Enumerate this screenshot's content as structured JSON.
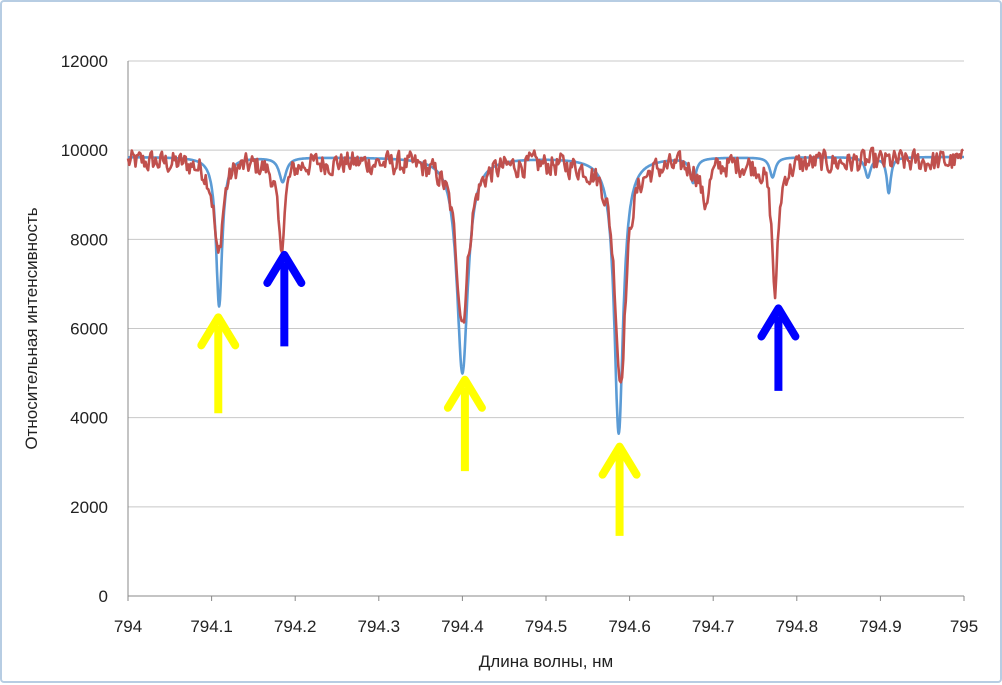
{
  "chart_data": {
    "type": "line",
    "title": "",
    "xlabel": "Длина волны, нм",
    "ylabel": "Относительная интенсивность",
    "xlim": [
      794,
      795
    ],
    "ylim": [
      0,
      12000
    ],
    "x_ticks": [
      "794",
      "794.1",
      "794.2",
      "794.3",
      "794.4",
      "794.5",
      "794.6",
      "794.7",
      "794.8",
      "794.9",
      "795"
    ],
    "y_ticks": [
      "0",
      "2000",
      "4000",
      "6000",
      "8000",
      "10000",
      "12000"
    ],
    "grid": "horizontal",
    "legend": "none",
    "series": [
      {
        "color": "#5b9bd5",
        "baseline": 9850,
        "lines": [
          {
            "x": 794.109,
            "depth": 3350,
            "width": 0.0045
          },
          {
            "x": 794.185,
            "depth": 550,
            "width": 0.005
          },
          {
            "x": 794.4,
            "depth": 4850,
            "width": 0.008
          },
          {
            "x": 794.587,
            "depth": 6200,
            "width": 0.0065
          },
          {
            "x": 794.676,
            "depth": 550,
            "width": 0.004
          },
          {
            "x": 794.771,
            "depth": 450,
            "width": 0.004
          },
          {
            "x": 794.885,
            "depth": 450,
            "width": 0.004
          },
          {
            "x": 794.91,
            "depth": 800,
            "width": 0.003
          }
        ]
      },
      {
        "color": "#c0504d",
        "baseline": 9750,
        "noise": 240,
        "lines": [
          {
            "x": 794.108,
            "depth": 2150,
            "width": 0.006
          },
          {
            "x": 794.183,
            "depth": 1950,
            "width": 0.005
          },
          {
            "x": 794.4,
            "depth": 3550,
            "width": 0.009
          },
          {
            "x": 794.589,
            "depth": 4900,
            "width": 0.008
          },
          {
            "x": 794.69,
            "depth": 900,
            "width": 0.006
          },
          {
            "x": 794.774,
            "depth": 2950,
            "width": 0.0045
          }
        ]
      }
    ],
    "annotations": [
      {
        "type": "arrow",
        "color": "#ffff00",
        "x": 794.108,
        "y_tip": 6250,
        "y_tail": 4100
      },
      {
        "type": "arrow",
        "color": "#0000ff",
        "x": 794.187,
        "y_tip": 7650,
        "y_tail": 5600
      },
      {
        "type": "arrow",
        "color": "#ffff00",
        "x": 794.403,
        "y_tip": 4850,
        "y_tail": 2800
      },
      {
        "type": "arrow",
        "color": "#ffff00",
        "x": 794.588,
        "y_tip": 3350,
        "y_tail": 1350
      },
      {
        "type": "arrow",
        "color": "#0000ff",
        "x": 794.778,
        "y_tip": 6450,
        "y_tail": 4600
      }
    ]
  }
}
